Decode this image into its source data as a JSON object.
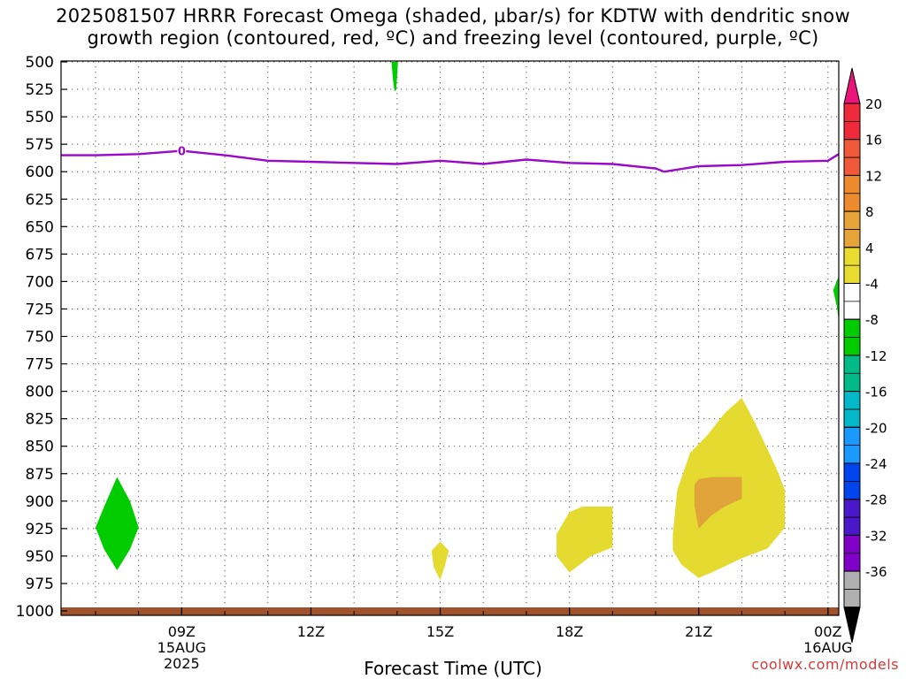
{
  "chart_data": {
    "type": "contour-timeheight",
    "title": "2025081507 HRRR Forecast Omega (shaded, µbar/s) for KDTW with dendritic snow\ngrowth region (contoured, red, ºC) and freezing level (contoured, purple, ºC)",
    "xlabel": "Forecast Time (UTC)",
    "ylabel": "",
    "y_ticks": [
      500,
      525,
      550,
      575,
      600,
      625,
      650,
      675,
      700,
      725,
      750,
      775,
      800,
      825,
      850,
      875,
      900,
      925,
      950,
      975,
      1000
    ],
    "ylim": [
      500,
      1000
    ],
    "x_range_hours": [
      6.2,
      24.25
    ],
    "x_ticks": [
      {
        "hour": 9,
        "label": "09Z",
        "date": "15AUG",
        "year": "2025"
      },
      {
        "hour": 12,
        "label": "12Z",
        "date": "",
        "year": ""
      },
      {
        "hour": 15,
        "label": "15Z",
        "date": "",
        "year": ""
      },
      {
        "hour": 18,
        "label": "18Z",
        "date": "",
        "year": ""
      },
      {
        "hour": 21,
        "label": "21Z",
        "date": "",
        "year": ""
      },
      {
        "hour": 24,
        "label": "00Z",
        "date": "16AUG",
        "year": ""
      }
    ],
    "grid": true,
    "freezing_level": {
      "label": "0",
      "color": "#9a08c8",
      "points": [
        [
          6.2,
          585
        ],
        [
          7.0,
          585
        ],
        [
          8.0,
          584
        ],
        [
          9.0,
          581
        ],
        [
          10.0,
          585
        ],
        [
          11.0,
          590
        ],
        [
          12.0,
          591
        ],
        [
          13.0,
          592
        ],
        [
          14.0,
          593
        ],
        [
          15.0,
          590
        ],
        [
          16.0,
          593
        ],
        [
          16.5,
          591
        ],
        [
          17.0,
          589
        ],
        [
          18.0,
          592
        ],
        [
          19.0,
          593
        ],
        [
          20.0,
          597
        ],
        [
          20.2,
          600
        ],
        [
          21.0,
          595
        ],
        [
          22.0,
          594
        ],
        [
          23.0,
          591
        ],
        [
          24.0,
          590
        ],
        [
          24.25,
          584
        ]
      ]
    },
    "omega_regions": [
      {
        "label": "-8 to -4",
        "color": "#00cc00",
        "points": [
          [
            7.0,
            924
          ],
          [
            7.2,
            905
          ],
          [
            7.5,
            878
          ],
          [
            7.8,
            900
          ],
          [
            8.0,
            924
          ],
          [
            7.8,
            944
          ],
          [
            7.5,
            963
          ],
          [
            7.2,
            944
          ]
        ]
      },
      {
        "label": "-8 to -4",
        "color": "#00cc00",
        "points": [
          [
            13.87,
            500
          ],
          [
            14.02,
            500
          ],
          [
            13.98,
            525
          ],
          [
            13.94,
            527
          ],
          [
            13.9,
            515
          ]
        ]
      },
      {
        "label": "-8 to -4",
        "color": "#00cc00",
        "points": [
          [
            24.25,
            695
          ],
          [
            24.12,
            708
          ],
          [
            24.2,
            722
          ],
          [
            24.25,
            735
          ]
        ]
      },
      {
        "label": "4 to 8",
        "color": "#e5da30",
        "points": [
          [
            14.8,
            945
          ],
          [
            15.0,
            937
          ],
          [
            15.2,
            945
          ],
          [
            15.1,
            960
          ],
          [
            15.0,
            972
          ],
          [
            14.85,
            960
          ]
        ]
      },
      {
        "label": "4 to 8",
        "color": "#e5da30",
        "points": [
          [
            17.7,
            930
          ],
          [
            18.0,
            910
          ],
          [
            18.3,
            905
          ],
          [
            19.0,
            905
          ],
          [
            19.0,
            942
          ],
          [
            18.5,
            950
          ],
          [
            18.0,
            965
          ],
          [
            17.7,
            950
          ]
        ]
      },
      {
        "label": "4 to 8",
        "color": "#e5da30",
        "points": [
          [
            20.4,
            930
          ],
          [
            20.5,
            890
          ],
          [
            20.8,
            856
          ],
          [
            21.2,
            840
          ],
          [
            21.6,
            820
          ],
          [
            22.0,
            806
          ],
          [
            22.3,
            828
          ],
          [
            22.8,
            870
          ],
          [
            23.0,
            890
          ],
          [
            23.0,
            924
          ],
          [
            22.6,
            943
          ],
          [
            22.0,
            952
          ],
          [
            21.3,
            965
          ],
          [
            21.0,
            970
          ],
          [
            20.6,
            958
          ],
          [
            20.4,
            945
          ]
        ]
      },
      {
        "label": "8 to 12",
        "color": "#e0a43a",
        "points": [
          [
            20.9,
            885
          ],
          [
            21.0,
            880
          ],
          [
            21.3,
            878
          ],
          [
            22.0,
            878
          ],
          [
            22.0,
            898
          ],
          [
            21.6,
            905
          ],
          [
            21.3,
            913
          ],
          [
            21.0,
            925
          ],
          [
            20.9,
            905
          ]
        ]
      }
    ],
    "surface": {
      "color": "#a0522d",
      "pressure": 1000
    },
    "colorbar": {
      "ticks": [
        "20",
        "16",
        "12",
        "8",
        "4",
        "-4",
        "-8",
        "-12",
        "-16",
        "-20",
        "-24",
        "-28",
        "-32",
        "-36"
      ],
      "colors": [
        "#ef2a3a",
        "#f05a3a",
        "#ee8a2e",
        "#e5a33a",
        "#e8dc30",
        "#ffffff",
        "#00cc00",
        "#00bb88",
        "#00b8c8",
        "#1a9aff",
        "#0044ee",
        "#4a18c8",
        "#8000c8",
        "#b0b0b0"
      ],
      "top_arrow_color": "#e8157a",
      "bottom_arrow_color": "#000000"
    }
  },
  "credit": "coolwx.com/models"
}
